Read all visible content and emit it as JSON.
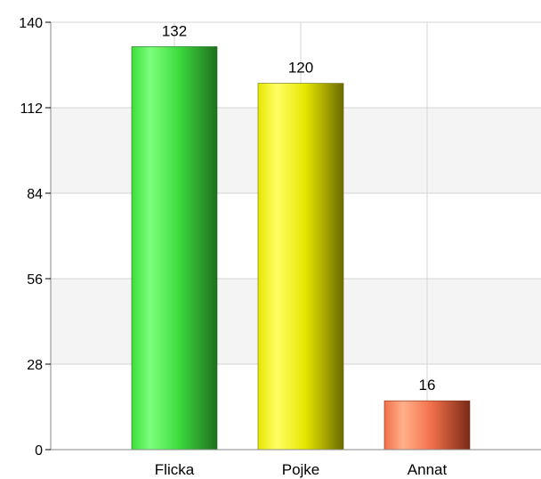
{
  "chart_data": {
    "type": "bar",
    "title": "",
    "xlabel": "",
    "ylabel": "",
    "categories": [
      "Flicka",
      "Pojke",
      "Annat"
    ],
    "values": [
      132,
      120,
      16
    ],
    "data_labels": [
      "132",
      "120",
      "16"
    ],
    "ylim": [
      0,
      140
    ],
    "yticks": [
      0,
      28,
      56,
      84,
      112,
      140
    ],
    "ytick_labels": [
      "0",
      "28",
      "56",
      "84",
      "112",
      "140"
    ],
    "grid": true,
    "alternating_bands": true,
    "legend": "none",
    "colors": {
      "Flicka": {
        "light": "#7dff7d",
        "base": "#3ddc3d",
        "dark": "#1e6f1e"
      },
      "Pojke": {
        "light": "#ffff66",
        "base": "#e6e600",
        "dark": "#6b6b00"
      },
      "Annat": {
        "light": "#ffb08a",
        "base": "#f2704a",
        "dark": "#7a2a18"
      },
      "band": "#f4f4f5",
      "grid": "#d4d4d4",
      "axis": "#888888"
    }
  }
}
